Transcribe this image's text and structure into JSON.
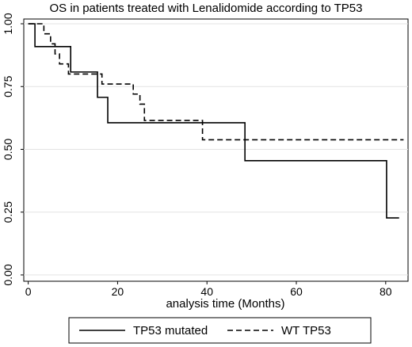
{
  "chart_data": {
    "type": "line",
    "subtype": "kaplan-meier-step",
    "title": "OS in patients treated with Lenalidomide according to TP53",
    "xlabel": "analysis time (Months)",
    "ylabel": "",
    "xlim": [
      -1,
      85
    ],
    "ylim": [
      0,
      1
    ],
    "x_ticks": [
      0,
      20,
      40,
      60,
      80
    ],
    "x_tick_labels": [
      "0",
      "20",
      "40",
      "60",
      "80"
    ],
    "y_ticks": [
      0,
      0.25,
      0.5,
      0.75,
      1
    ],
    "y_tick_labels": [
      "0.00",
      "0.25",
      "0.50",
      "0.75",
      "1.00"
    ],
    "grid": "horizontal",
    "legend_position": "bottom",
    "series": [
      {
        "name": "TP53 mutated",
        "line_style": "solid",
        "color": "#000000",
        "x": [
          0,
          1.5,
          9.5,
          15.5,
          17.8,
          48.5,
          80.2,
          83
        ],
        "y": [
          1.0,
          0.909,
          0.808,
          0.707,
          0.606,
          0.455,
          0.227,
          0.227
        ]
      },
      {
        "name": "WT TP53",
        "line_style": "dashed",
        "color": "#000000",
        "x": [
          0,
          3.5,
          5,
          6,
          7,
          9,
          15.5,
          16.5,
          23.5,
          25,
          26,
          39,
          84
        ],
        "y": [
          1.0,
          0.96,
          0.92,
          0.88,
          0.84,
          0.8,
          0.8,
          0.76,
          0.72,
          0.68,
          0.615,
          0.538,
          0.538
        ]
      }
    ]
  }
}
